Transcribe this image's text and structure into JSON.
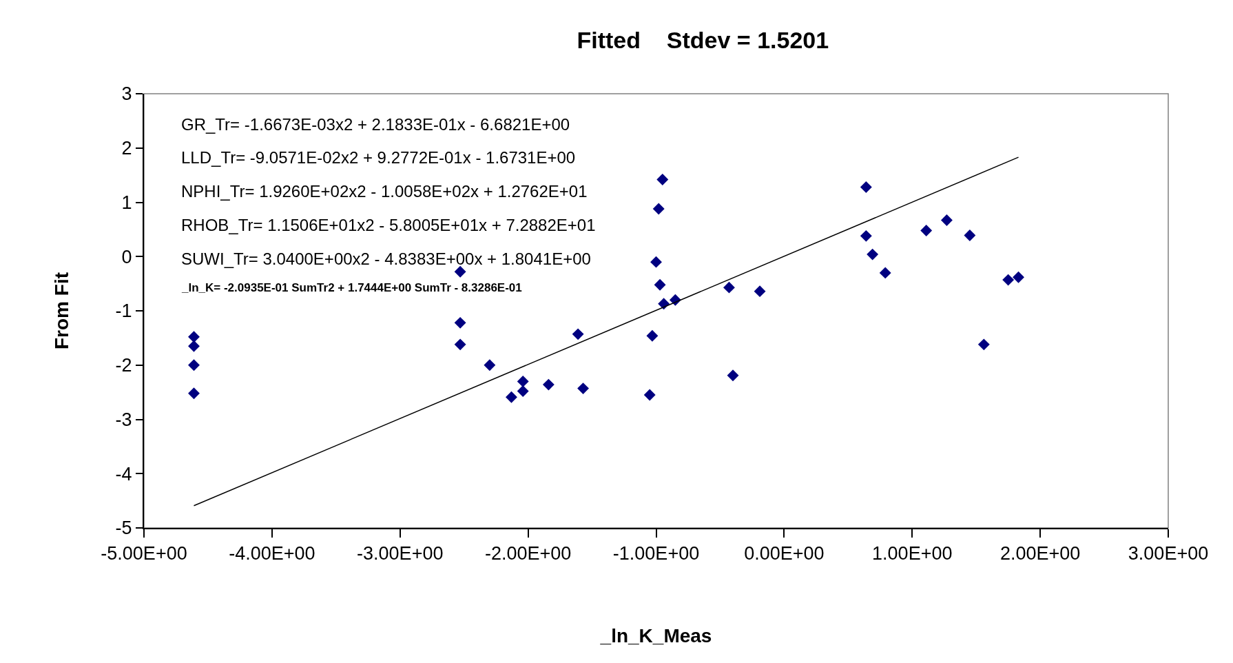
{
  "chart_data": {
    "type": "scatter",
    "title": "Fitted    Stdev = 1.5201",
    "xlabel": "_ln_K_Meas",
    "ylabel": "From Fit",
    "xlim": [
      -5,
      3
    ],
    "xticks": [
      {
        "value": -5,
        "label": "-5.00E+00"
      },
      {
        "value": -4,
        "label": "-4.00E+00"
      },
      {
        "value": -3,
        "label": "-3.00E+00"
      },
      {
        "value": -2,
        "label": "-2.00E+00"
      },
      {
        "value": -1,
        "label": "-1.00E+00"
      },
      {
        "value": 0,
        "label": "0.00E+00"
      },
      {
        "value": 1,
        "label": "1.00E+00"
      },
      {
        "value": 2,
        "label": "2.00E+00"
      },
      {
        "value": 3,
        "label": "3.00E+00"
      }
    ],
    "ylim": [
      -5,
      3
    ],
    "yticks": [
      -5,
      -4,
      -3,
      -2,
      -1,
      0,
      1,
      2,
      3
    ],
    "grid": false,
    "marker": "diamond",
    "series": [
      {
        "color": "#000080",
        "x": [
          -4.61,
          -4.61,
          -4.61,
          -4.61,
          -2.53,
          -2.53,
          -2.53,
          -2.3,
          -2.13,
          -2.04,
          -2.04,
          -1.84,
          -1.61,
          -1.57,
          -1.05,
          -1.03,
          -1.0,
          -0.97,
          -0.94,
          -0.85,
          -0.95,
          -0.98,
          -0.43,
          -0.4,
          -0.19,
          0.64,
          0.64,
          0.69,
          0.79,
          1.11,
          1.27,
          1.45,
          1.56,
          1.75,
          1.83
        ],
        "values": [
          -1.48,
          -1.65,
          -2.0,
          -2.52,
          -0.28,
          -1.22,
          -1.62,
          -2.0,
          -2.59,
          -2.3,
          -2.48,
          -2.36,
          -1.43,
          -2.43,
          -2.55,
          -1.46,
          -0.1,
          -0.52,
          -0.87,
          -0.8,
          1.42,
          0.88,
          -0.57,
          -2.19,
          -0.64,
          1.28,
          0.38,
          0.04,
          -0.3,
          0.48,
          0.67,
          0.39,
          -1.62,
          -0.43,
          -0.38
        ]
      },
      {
        "type": "line",
        "color": "#000000",
        "marker": "none",
        "x": [
          -4.61,
          1.83
        ],
        "values": [
          -4.59,
          1.83
        ]
      }
    ],
    "annotations": [
      "GR_Tr= -1.6673E-03x2 + 2.1833E-01x - 6.6821E+00",
      "LLD_Tr= -9.0571E-02x2 + 9.2772E-01x - 1.6731E+00",
      "NPHI_Tr= 1.9260E+02x2 - 1.0058E+02x + 1.2762E+01",
      "RHOB_Tr= 1.1506E+01x2 - 5.8005E+01x + 7.2882E+01",
      "SUWI_Tr= 3.0400E+00x2 - 4.8383E+00x + 1.8041E+00",
      "_ln_K= -2.0935E-01 SumTr2 + 1.7444E+00 SumTr - 8.3286E-01"
    ]
  }
}
